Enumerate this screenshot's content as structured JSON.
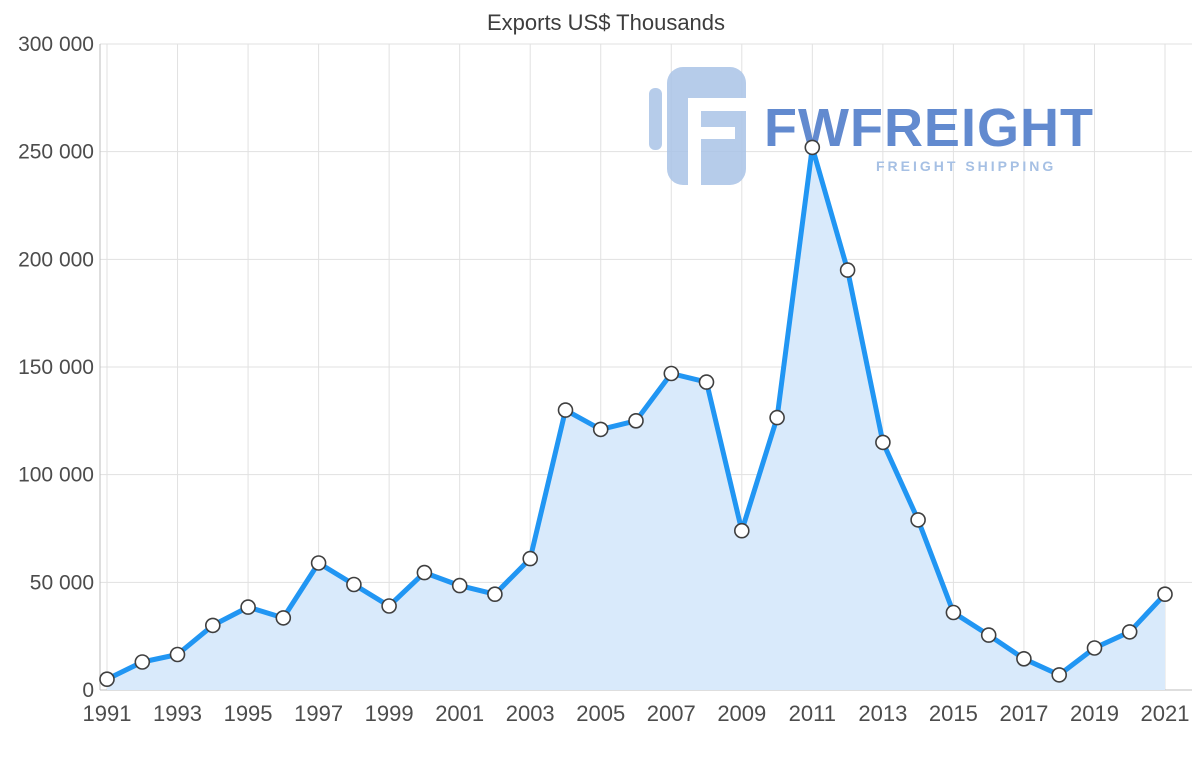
{
  "chart_data": {
    "type": "area",
    "title": "Exports US$ Thousands",
    "x": [
      1991,
      1992,
      1993,
      1994,
      1995,
      1996,
      1997,
      1998,
      1999,
      2000,
      2001,
      2002,
      2003,
      2004,
      2005,
      2006,
      2007,
      2008,
      2009,
      2010,
      2011,
      2012,
      2013,
      2014,
      2015,
      2016,
      2017,
      2018,
      2019,
      2020,
      2021
    ],
    "values": [
      5000,
      13000,
      16500,
      30000,
      38500,
      33500,
      59000,
      49000,
      39000,
      54500,
      48500,
      44500,
      61000,
      130000,
      121000,
      125000,
      147000,
      143000,
      74000,
      126500,
      252000,
      195000,
      115000,
      79000,
      36000,
      25500,
      14500,
      7000,
      19500,
      27000,
      44500
    ],
    "xlabel": "",
    "ylabel": "",
    "ylim": [
      0,
      300000
    ],
    "grid": "on",
    "legend": "none",
    "y_ticks": [
      {
        "value": 0,
        "label": "0"
      },
      {
        "value": 50000,
        "label": "50 000"
      },
      {
        "value": 100000,
        "label": "100 000"
      },
      {
        "value": 150000,
        "label": "150 000"
      },
      {
        "value": 200000,
        "label": "200 000"
      },
      {
        "value": 250000,
        "label": "250 000"
      },
      {
        "value": 300000,
        "label": "300 000"
      }
    ],
    "x_tick_years": [
      1991,
      1993,
      1995,
      1997,
      1999,
      2001,
      2003,
      2005,
      2007,
      2009,
      2011,
      2013,
      2015,
      2017,
      2019,
      2021
    ],
    "colors": {
      "line": "#2196f3",
      "area": "#d9eafb",
      "marker_fill": "#ffffff",
      "marker_stroke": "#3f3f3f",
      "grid": "#e1e1e1",
      "axis": "#bdbdbd",
      "label": "#4c4c4c",
      "title": "#3d3d3d"
    }
  },
  "watermark": {
    "brand": "FWFREIGHT",
    "tagline": "FREIGHT SHIPPING"
  }
}
